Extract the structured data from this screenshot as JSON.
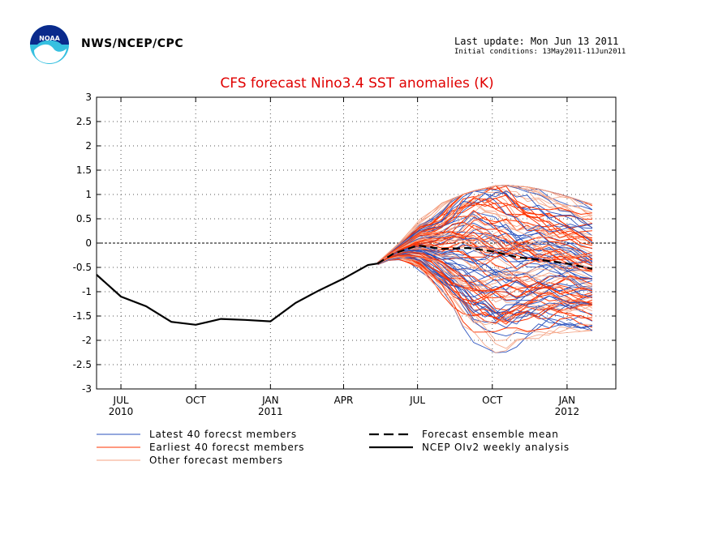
{
  "header": {
    "agency": "NWS/NCEP/CPC",
    "last_update": "Last update: Mon Jun 13 2011",
    "initial_conditions": "Initial conditions: 13May2011-11Jun2011",
    "logo_text": "NOAA"
  },
  "chart_data": {
    "type": "line",
    "title": "CFS forecast Nino3.4 SST anomalies (K)",
    "xlabel": "",
    "ylabel": "",
    "ylim": [
      -3,
      3
    ],
    "yticks": [
      3,
      2.5,
      2,
      1.5,
      1,
      0.5,
      0,
      -0.5,
      -1,
      -1.5,
      -2,
      -2.5,
      -3
    ],
    "ytick_labels": [
      "3",
      "2.5",
      "2",
      "1.5",
      "1",
      "0.5",
      "0",
      "-0.5",
      "-1",
      "-1.5",
      "-2",
      "-2.5",
      "-3"
    ],
    "xlim": [
      "2010-06-01",
      "2012-03-01"
    ],
    "xticks": [
      {
        "date": "2010-07-01",
        "label": "JUL",
        "year": "2010"
      },
      {
        "date": "2010-10-01",
        "label": "OCT",
        "year": ""
      },
      {
        "date": "2011-01-01",
        "label": "JAN",
        "year": "2011"
      },
      {
        "date": "2011-04-01",
        "label": "APR",
        "year": ""
      },
      {
        "date": "2011-07-01",
        "label": "JUL",
        "year": ""
      },
      {
        "date": "2011-10-01",
        "label": "OCT",
        "year": ""
      },
      {
        "date": "2012-01-01",
        "label": "JAN",
        "year": "2012"
      }
    ],
    "grid": true,
    "zero_line": true,
    "series": [
      {
        "name": "NCEP OIv2 weekly analysis",
        "style": "solid",
        "color": "#000000",
        "x": [
          "2010-06-01",
          "2010-07-01",
          "2010-08-01",
          "2010-09-01",
          "2010-10-01",
          "2010-11-01",
          "2010-12-01",
          "2011-01-01",
          "2011-02-01",
          "2011-03-01",
          "2011-04-01",
          "2011-05-01",
          "2011-05-13"
        ],
        "y": [
          -0.65,
          -1.1,
          -1.3,
          -1.62,
          -1.68,
          -1.56,
          -1.58,
          -1.61,
          -1.23,
          -0.98,
          -0.73,
          -0.45,
          -0.42
        ]
      },
      {
        "name": "Forecast ensemble mean",
        "style": "dashed",
        "color": "#000000",
        "x": [
          "2011-05-13",
          "2011-06-01",
          "2011-07-01",
          "2011-08-01",
          "2011-09-01",
          "2011-10-01",
          "2011-11-01",
          "2011-12-01",
          "2012-01-01",
          "2012-02-01"
        ],
        "y": [
          -0.42,
          -0.22,
          -0.05,
          -0.12,
          -0.1,
          -0.17,
          -0.29,
          -0.35,
          -0.42,
          -0.53
        ]
      }
    ],
    "ensemble": {
      "latest_color": "#2a52be",
      "earliest_color": "#ff3300",
      "other_color": "#f4a080",
      "members": 120,
      "start": "2011-05-13",
      "end": "2012-02-01",
      "envelope_upper": [
        0.18,
        0.55,
        0.8,
        1.05,
        1.2,
        1.15,
        1.0,
        0.8
      ],
      "envelope_lower": [
        -0.6,
        -1.0,
        -1.5,
        -2.0,
        -2.3,
        -2.0,
        -1.85,
        -1.8
      ]
    },
    "legend": [
      {
        "label": "Latest 40 forecst members",
        "color": "#2a52be",
        "style": "thin"
      },
      {
        "label": "Earliest 40 forecst members",
        "color": "#ff3300",
        "style": "thin"
      },
      {
        "label": "Other forecast members",
        "color": "#f4a080",
        "style": "thin"
      },
      {
        "label": "Forecast ensemble mean",
        "color": "#000000",
        "style": "dashed"
      },
      {
        "label": "NCEP OIv2 weekly analysis",
        "color": "#000000",
        "style": "solid"
      }
    ]
  }
}
